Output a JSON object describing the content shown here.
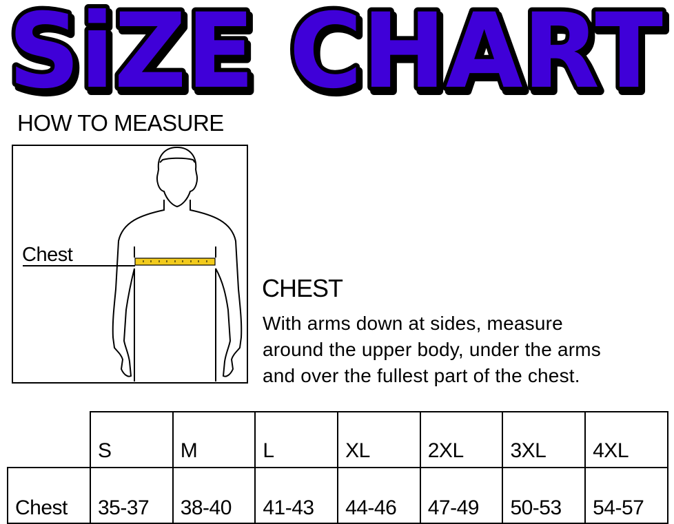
{
  "title": "SiZE CHART",
  "how_to_measure": "HOW TO MEASURE",
  "figure": {
    "label": "Chest",
    "tape_color": "#f2cb1d"
  },
  "section": {
    "heading": "CHEST",
    "lines": [
      "With arms down at sides, measure",
      "around the upper body, under the arms",
      "and over the fullest part of the chest."
    ]
  },
  "colors": {
    "title_fill": "#3f00d8",
    "title_outline": "#000000"
  },
  "table": {
    "sizes": [
      "S",
      "M",
      "L",
      "XL",
      "2XL",
      "3XL",
      "4XL"
    ],
    "rows": [
      {
        "label": "Chest",
        "values": [
          "35-37",
          "38-40",
          "41-43",
          "44-46",
          "47-49",
          "50-53",
          "54-57"
        ]
      }
    ]
  }
}
